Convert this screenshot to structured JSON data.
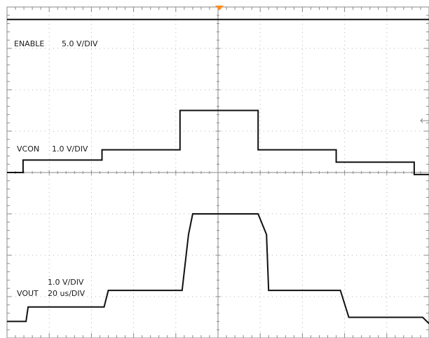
{
  "chart_data": {
    "type": "line",
    "title": "",
    "grid": true,
    "channels": [
      {
        "name": "ENABLE",
        "label": "ENABLE",
        "scale": "5.0 V/DIV"
      },
      {
        "name": "VCON",
        "label": "VCON",
        "scale": "1.0 V/DIV"
      },
      {
        "name": "VOUT",
        "label": "VOUT",
        "scale": "1.0 V/DIV",
        "timebase": "20 us/DIV"
      }
    ],
    "x_divisions": 10,
    "y_divisions": 8,
    "series": [
      {
        "name": "ENABLE",
        "x_div": [
          0,
          10
        ],
        "y_div": [
          7.7,
          7.7
        ]
      },
      {
        "name": "VCON",
        "x_div": [
          0,
          0.38,
          0.38,
          2.25,
          2.25,
          4.1,
          4.1,
          5.95,
          5.95,
          7.8,
          7.8,
          9.65,
          9.65,
          10
        ],
        "y_div": [
          4.0,
          4.0,
          4.3,
          4.3,
          4.55,
          4.55,
          5.5,
          5.5,
          4.55,
          4.55,
          4.25,
          4.25,
          3.95,
          3.95
        ]
      },
      {
        "name": "VOUT",
        "x_div": [
          0,
          0.45,
          0.5,
          2.3,
          2.4,
          4.15,
          4.3,
          4.4,
          5.95,
          6.15,
          6.2,
          7.9,
          8.1,
          9.85,
          10
        ],
        "y_div": [
          0.4,
          0.4,
          0.75,
          0.75,
          1.15,
          1.15,
          2.5,
          3.0,
          3.0,
          2.5,
          1.15,
          1.15,
          0.5,
          0.5,
          0.35
        ]
      }
    ]
  }
}
